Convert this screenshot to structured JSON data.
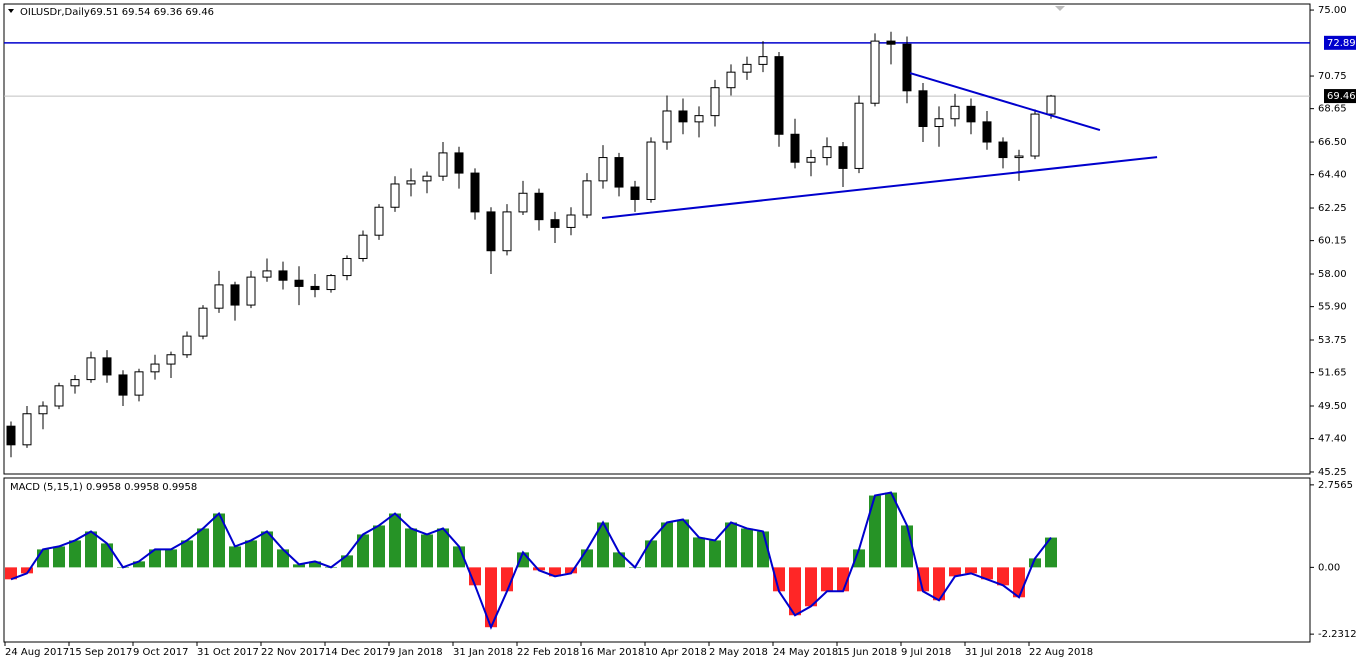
{
  "chart_data": [
    {
      "type": "candlestick",
      "title": "OILUSDr,Daily",
      "ohlc_text": "69.51 69.54 69.36 69.46",
      "categories": [
        "24 Aug 2017",
        null,
        null,
        null,
        "15 Sep 2017",
        null,
        null,
        null,
        "9 Oct 2017",
        null,
        null,
        null,
        "31 Oct 2017",
        null,
        null,
        null,
        "22 Nov 2017",
        null,
        null,
        null,
        "14 Dec 2017",
        null,
        null,
        null,
        "9 Jan 2018",
        null,
        null,
        null,
        "31 Jan 2018",
        null,
        null,
        null,
        "22 Feb 2018",
        null,
        null,
        null,
        "16 Mar 2018",
        null,
        null,
        null,
        "10 Apr 2018",
        null,
        null,
        null,
        "2 May 2018",
        null,
        null,
        null,
        "24 May 2018",
        null,
        null,
        null,
        "15 Jun 2018",
        null,
        null,
        null,
        "9 Jul 2018",
        null,
        null,
        null,
        "31 Jul 2018",
        null,
        null,
        null,
        "22 Aug 2018",
        null
      ],
      "open": [
        48.2,
        47.0,
        49.0,
        49.5,
        50.8,
        51.2,
        52.6,
        51.5,
        50.2,
        51.7,
        52.2,
        52.8,
        54.0,
        55.8,
        57.3,
        56.0,
        57.8,
        58.2,
        57.6,
        57.2,
        57.0,
        57.9,
        59.0,
        60.5,
        62.3,
        63.8,
        64.0,
        64.3,
        65.8,
        64.5,
        62.0,
        59.5,
        62.0,
        63.2,
        61.5,
        61.0,
        61.8,
        64.0,
        65.5,
        63.6,
        62.8,
        66.5,
        68.5,
        67.8,
        68.2,
        70.0,
        71.0,
        71.5,
        72.0,
        67.0,
        65.2,
        65.5,
        66.2,
        64.8,
        69.0,
        73.0,
        72.8,
        69.8,
        67.5,
        68.0,
        68.8,
        67.8,
        66.5,
        65.5,
        65.6,
        68.3
      ],
      "high": [
        48.5,
        49.5,
        49.8,
        51.0,
        51.5,
        53.0,
        53.1,
        51.8,
        51.9,
        52.8,
        53.0,
        54.3,
        56.0,
        58.2,
        57.5,
        58.2,
        59.0,
        58.8,
        58.5,
        58.0,
        58.0,
        59.2,
        60.8,
        62.5,
        64.3,
        64.8,
        64.6,
        66.5,
        66.2,
        64.8,
        62.3,
        62.5,
        64.0,
        63.5,
        62.0,
        62.3,
        64.5,
        66.3,
        65.8,
        64.0,
        66.8,
        69.5,
        69.3,
        68.8,
        70.5,
        71.5,
        72.0,
        73.0,
        72.3,
        68.0,
        66.0,
        66.8,
        66.5,
        69.5,
        73.5,
        73.6,
        73.3,
        70.3,
        68.8,
        69.6,
        69.3,
        68.5,
        66.8,
        66.0,
        68.6,
        69.54
      ],
      "low": [
        46.2,
        46.8,
        48.0,
        49.3,
        50.3,
        51.0,
        51.0,
        49.5,
        49.8,
        51.2,
        51.3,
        52.6,
        53.8,
        55.5,
        55.0,
        55.8,
        57.5,
        57.0,
        56.0,
        56.5,
        56.8,
        57.6,
        58.8,
        60.2,
        62.0,
        63.0,
        63.2,
        64.0,
        63.5,
        61.5,
        58.0,
        59.2,
        61.8,
        60.8,
        60.0,
        60.5,
        61.6,
        63.5,
        63.0,
        62.0,
        62.6,
        66.0,
        67.0,
        66.8,
        67.5,
        69.5,
        70.5,
        71.0,
        66.2,
        64.8,
        64.3,
        65.0,
        63.6,
        64.5,
        68.8,
        71.5,
        69.0,
        66.5,
        66.2,
        67.5,
        67.0,
        66.0,
        64.8,
        64.0,
        65.4,
        68.0
      ],
      "close": [
        47.0,
        49.0,
        49.5,
        50.8,
        51.2,
        52.6,
        51.5,
        50.2,
        51.7,
        52.2,
        52.8,
        54.0,
        55.8,
        57.3,
        56.0,
        57.8,
        58.2,
        57.6,
        57.2,
        57.0,
        57.9,
        59.0,
        60.5,
        62.3,
        63.8,
        64.0,
        64.3,
        65.8,
        64.5,
        62.0,
        59.5,
        62.0,
        63.2,
        61.5,
        61.0,
        61.8,
        64.0,
        65.5,
        63.6,
        62.8,
        66.5,
        68.5,
        67.8,
        68.2,
        70.0,
        71.0,
        71.5,
        72.0,
        67.0,
        65.2,
        65.5,
        66.2,
        64.8,
        69.0,
        73.0,
        72.8,
        69.8,
        67.5,
        68.0,
        68.8,
        67.8,
        66.5,
        65.5,
        65.6,
        68.3,
        69.46
      ],
      "bull_color": "#ffffff",
      "bear_color": "#000000",
      "ylim": [
        45.12,
        75.39
      ],
      "yticks": [
        {
          "value": 75,
          "label": "75.00"
        },
        {
          "value": 70.75,
          "label": "70.75"
        },
        {
          "value": 68.65,
          "label": "68.65"
        },
        {
          "value": 66.5,
          "label": "66.50"
        },
        {
          "value": 64.4,
          "label": "64.40"
        },
        {
          "value": 62.25,
          "label": "62.25"
        },
        {
          "value": 60.15,
          "label": "60.15"
        },
        {
          "value": 58,
          "label": "58.00"
        },
        {
          "value": 55.9,
          "label": "55.90"
        },
        {
          "value": 53.75,
          "label": "53.75"
        },
        {
          "value": 51.65,
          "label": "51.65"
        },
        {
          "value": 49.5,
          "label": "49.50"
        },
        {
          "value": 47.4,
          "label": "47.40"
        },
        {
          "value": 45.25,
          "label": "45.25"
        }
      ],
      "hlines": [
        {
          "value": 72.89,
          "color": "#0000cd"
        },
        {
          "value": 69.46,
          "color": "#000000"
        }
      ],
      "trendlines": [
        {
          "x": [
            36.94,
            71.63
          ],
          "y": [
            61.61,
            65.53
          ],
          "color": "#0000cd"
        },
        {
          "x": [
            56.19,
            68.06
          ],
          "y": [
            70.94,
            67.27
          ],
          "color": "#0000cd"
        }
      ]
    },
    {
      "type": "macd",
      "title": "MACD (5,15,1) 0.9958 0.9958 0.9958",
      "values": [
        -0.4,
        -0.2,
        0.6,
        0.7,
        0.9,
        1.2,
        0.8,
        0.0,
        0.2,
        0.6,
        0.6,
        0.9,
        1.3,
        1.8,
        0.7,
        0.9,
        1.2,
        0.6,
        0.1,
        0.2,
        0.0,
        0.4,
        1.1,
        1.4,
        1.8,
        1.3,
        1.1,
        1.3,
        0.7,
        -0.6,
        -2.0,
        -0.8,
        0.5,
        -0.1,
        -0.3,
        -0.2,
        0.6,
        1.5,
        0.5,
        0.0,
        0.9,
        1.5,
        1.6,
        1.0,
        0.9,
        1.5,
        1.3,
        1.2,
        -0.8,
        -1.6,
        -1.3,
        -0.8,
        -0.8,
        0.6,
        2.4,
        2.5,
        1.4,
        -0.8,
        -1.1,
        -0.3,
        -0.2,
        -0.4,
        -0.6,
        -1.0,
        0.3,
        0.9958
      ],
      "up_color": "#008000",
      "down_color": "#ff0000",
      "line_color": "#0000cd",
      "ylim": [
        -2.494,
        2.986
      ],
      "yticks": [
        2.7565,
        {
          "value": 0,
          "label": "0.00"
        },
        -2.2312
      ]
    }
  ]
}
